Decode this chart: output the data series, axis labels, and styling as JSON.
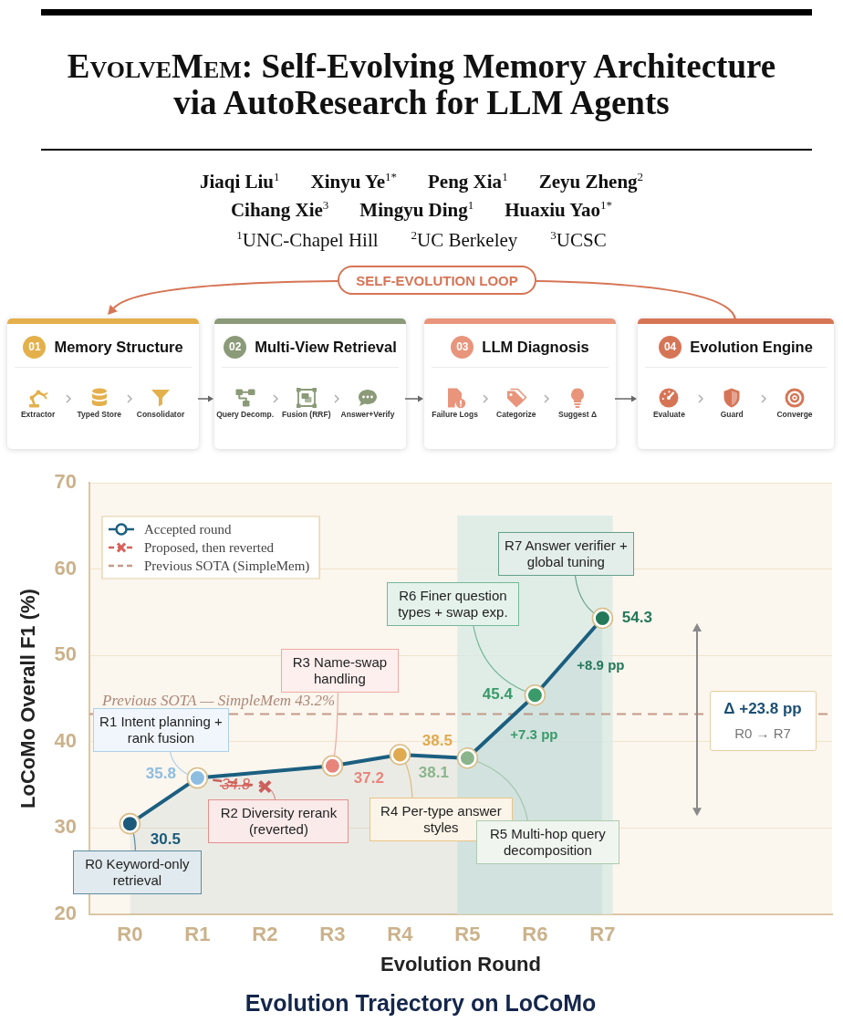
{
  "chart_data": [
    {
      "type": "other",
      "title": "EvolveMem: Self-Evolving Memory Architecture via AutoResearch for LLM Agents",
      "colors": [
        "#e3b04b",
        "#8b9a78",
        "#e8957c",
        "#d67556"
      ],
      "annotations": [
        "Jiaqi Liu$^{1}$",
        "Xinyu Ye$^{1*}$",
        "Peng Xia$^{1}$",
        "Zeyu Zheng$^{2}$",
        "Cihang Xie$^{3}$",
        "Mingyu Ding$^{1}$",
        "Huaxiu Yao$^{1*}$",
        "$^{1}$UNC-Chapel Hill",
        "$^{2}$UC Berkeley",
        "$^{3}$UCSC",
        "SELF-EVOLUTION LOOP",
        "01",
        "Memory Structure",
        "Extractor",
        "Typed Store",
        "Consolidator",
        "02",
        "Multi-View Retrieval",
        "Query Decomp.",
        "Fusion (RRF)",
        "Answer+Verify",
        "03",
        "LLM Diagnosis",
        "Failure Logs",
        "Categorize",
        "Suggest Δ",
        "04",
        "Evolution Engine",
        "Evaluate",
        "Guard",
        "Converge"
      ]
    },
    {
      "type": "line",
      "title": "Evolution Trajectory on LoCoMo",
      "xlabel": "Evolution Round",
      "ylabel": "LoCoMo Overall F1 (%)",
      "categories": [
        "R0",
        "R1",
        "R2",
        "R3",
        "R4",
        "R5",
        "R6",
        "R7"
      ],
      "ylim": [
        20,
        70
      ],
      "yticks": [
        20,
        30,
        40,
        50,
        60,
        70
      ],
      "grid": "y",
      "legend": "top left",
      "series": [
        {
          "name": "Accepted round",
          "type": "area",
          "color": "#1b5f80",
          "colors": [
            "#1b5a7a",
            "#8dbde0",
            null,
            "#e8857a",
            "#e0aa50",
            "#8ab58c",
            "#3a9a6a",
            "#24785a"
          ],
          "values": [
            30.5,
            35.8,
            null,
            37.2,
            38.5,
            38.1,
            45.4,
            54.3
          ],
          "value_labels": [
            "30.5",
            "35.8",
            null,
            "37.2",
            "38.5",
            "38.1",
            "45.4",
            "54.3"
          ],
          "marker": "circle"
        },
        {
          "name": "Proposed, then reverted",
          "type": "line",
          "color": "#d9605a",
          "values": [
            null,
            null,
            34.8,
            null,
            null,
            null,
            null,
            null
          ],
          "value_labels": [
            null,
            null,
            "34.8",
            null,
            null,
            null,
            null,
            null
          ],
          "marker": "cross",
          "line_style": "dashed"
        }
      ],
      "ref_lines": [
        {
          "axis": "y",
          "value": 43.2,
          "label": "Previous SOTA (SimpleMem)",
          "color": "#c49a88",
          "line_style": "dashed"
        }
      ],
      "bands": [
        {
          "axis": "x",
          "from": "R5",
          "to": "R7",
          "color": "#d9eae5"
        }
      ],
      "annotations": [
        {
          "text": "R0 Keyword-only retrieval",
          "x": "R0",
          "y": 30.5
        },
        {
          "text": "R1 Intent planning + rank fusion",
          "x": "R1",
          "y": 35.8
        },
        {
          "text": "R2 Diversity rerank (reverted)",
          "x": "R2",
          "y": 34.8
        },
        {
          "text": "R3 Name-swap handling",
          "x": "R3",
          "y": 37.2
        },
        {
          "text": "R4 Per-type answer styles",
          "x": "R4",
          "y": 38.5
        },
        {
          "text": "R5 Multi-hop query decomposition",
          "x": "R5",
          "y": 38.1
        },
        {
          "text": "R6 Finer question types + swap exp.",
          "x": "R6",
          "y": 45.4
        },
        {
          "text": "R7 Answer verifier + global tuning",
          "x": "R7",
          "y": 54.3
        },
        "+7.3 pp",
        "+8.9 pp",
        {
          "text": "Previous SOTA — SimpleMem 43.2%",
          "y": 43.2
        },
        "Δ +23.8 pp",
        "R0 → R7"
      ]
    }
  ]
}
